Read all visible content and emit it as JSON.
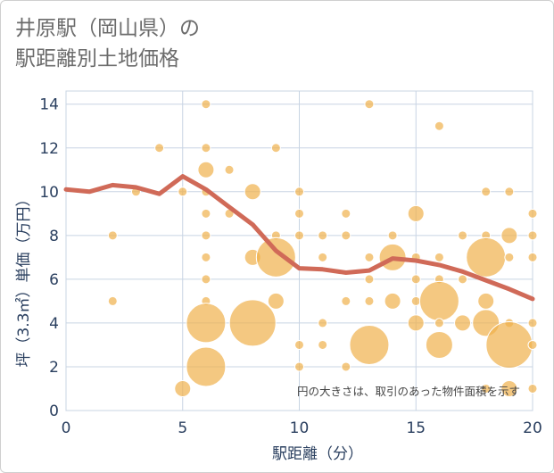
{
  "title_lines": [
    "井原駅（岡山県）の",
    "駅距離別土地価格"
  ],
  "colors": {
    "bubble": "#f0b04c",
    "line": "#d06a58",
    "grid": "#c8d4e3",
    "axis_text": "#2a3f5f"
  },
  "chart_data": {
    "type": "scatter",
    "title": "井原駅（岡山県）の駅距離別土地価格",
    "xlabel": "駅距離（分）",
    "ylabel": "坪（3.3㎡）単価（万円）",
    "xlim": [
      0,
      20
    ],
    "ylim": [
      0,
      14.6
    ],
    "xticks": [
      0,
      5,
      10,
      15,
      20
    ],
    "yticks": [
      0,
      2,
      4,
      6,
      8,
      10,
      12,
      14
    ],
    "grid": true,
    "annotation": "円の大きさは、取引のあった物件面積を示す",
    "bubbles": [
      {
        "x": 2,
        "y": 8,
        "s": 1
      },
      {
        "x": 2,
        "y": 5,
        "s": 1
      },
      {
        "x": 3,
        "y": 10,
        "s": 1
      },
      {
        "x": 4,
        "y": 12,
        "s": 1
      },
      {
        "x": 5,
        "y": 10,
        "s": 1
      },
      {
        "x": 5,
        "y": 1,
        "s": 2
      },
      {
        "x": 6,
        "y": 14,
        "s": 1
      },
      {
        "x": 6,
        "y": 12,
        "s": 1
      },
      {
        "x": 6,
        "y": 11,
        "s": 2
      },
      {
        "x": 6,
        "y": 10,
        "s": 1
      },
      {
        "x": 6,
        "y": 9,
        "s": 1
      },
      {
        "x": 6,
        "y": 8,
        "s": 1
      },
      {
        "x": 6,
        "y": 7,
        "s": 1
      },
      {
        "x": 6,
        "y": 6,
        "s": 1
      },
      {
        "x": 6,
        "y": 5,
        "s": 1
      },
      {
        "x": 6,
        "y": 4,
        "s": 4
      },
      {
        "x": 6,
        "y": 2,
        "s": 4
      },
      {
        "x": 7,
        "y": 11,
        "s": 1
      },
      {
        "x": 7,
        "y": 9,
        "s": 1
      },
      {
        "x": 8,
        "y": 10,
        "s": 2
      },
      {
        "x": 8,
        "y": 7,
        "s": 2
      },
      {
        "x": 8,
        "y": 4,
        "s": 5
      },
      {
        "x": 9,
        "y": 12,
        "s": 1
      },
      {
        "x": 9,
        "y": 8,
        "s": 1
      },
      {
        "x": 9,
        "y": 7,
        "s": 4
      },
      {
        "x": 9,
        "y": 5,
        "s": 2
      },
      {
        "x": 10,
        "y": 10,
        "s": 1
      },
      {
        "x": 10,
        "y": 9,
        "s": 1
      },
      {
        "x": 10,
        "y": 8,
        "s": 1
      },
      {
        "x": 10,
        "y": 3,
        "s": 1
      },
      {
        "x": 10,
        "y": 2,
        "s": 1
      },
      {
        "x": 11,
        "y": 8,
        "s": 1
      },
      {
        "x": 11,
        "y": 7,
        "s": 1
      },
      {
        "x": 11,
        "y": 4,
        "s": 1
      },
      {
        "x": 11,
        "y": 3,
        "s": 1
      },
      {
        "x": 12,
        "y": 9,
        "s": 1
      },
      {
        "x": 12,
        "y": 8,
        "s": 1
      },
      {
        "x": 12,
        "y": 5,
        "s": 1
      },
      {
        "x": 12,
        "y": 2,
        "s": 1
      },
      {
        "x": 13,
        "y": 14,
        "s": 1
      },
      {
        "x": 13,
        "y": 7,
        "s": 1
      },
      {
        "x": 13,
        "y": 6,
        "s": 1
      },
      {
        "x": 13,
        "y": 5,
        "s": 1
      },
      {
        "x": 13,
        "y": 3,
        "s": 4
      },
      {
        "x": 14,
        "y": 8,
        "s": 1
      },
      {
        "x": 14,
        "y": 7,
        "s": 3
      },
      {
        "x": 14,
        "y": 5,
        "s": 2
      },
      {
        "x": 15,
        "y": 9,
        "s": 2
      },
      {
        "x": 15,
        "y": 7,
        "s": 1
      },
      {
        "x": 15,
        "y": 6,
        "s": 1
      },
      {
        "x": 15,
        "y": 5,
        "s": 1
      },
      {
        "x": 15,
        "y": 4,
        "s": 2
      },
      {
        "x": 16,
        "y": 13,
        "s": 1
      },
      {
        "x": 16,
        "y": 7,
        "s": 1
      },
      {
        "x": 16,
        "y": 6,
        "s": 1
      },
      {
        "x": 16,
        "y": 5,
        "s": 4
      },
      {
        "x": 16,
        "y": 4,
        "s": 1
      },
      {
        "x": 16,
        "y": 3,
        "s": 3
      },
      {
        "x": 17,
        "y": 8,
        "s": 1
      },
      {
        "x": 17,
        "y": 6,
        "s": 1
      },
      {
        "x": 17,
        "y": 4,
        "s": 2
      },
      {
        "x": 18,
        "y": 10,
        "s": 1
      },
      {
        "x": 18,
        "y": 8,
        "s": 1
      },
      {
        "x": 18,
        "y": 7,
        "s": 4
      },
      {
        "x": 18,
        "y": 5,
        "s": 2
      },
      {
        "x": 18,
        "y": 4,
        "s": 3
      },
      {
        "x": 18,
        "y": 1,
        "s": 1
      },
      {
        "x": 19,
        "y": 10,
        "s": 1
      },
      {
        "x": 19,
        "y": 8,
        "s": 2
      },
      {
        "x": 19,
        "y": 7,
        "s": 1
      },
      {
        "x": 19,
        "y": 4,
        "s": 1
      },
      {
        "x": 19,
        "y": 3,
        "s": 5
      },
      {
        "x": 19,
        "y": 1,
        "s": 2
      },
      {
        "x": 20,
        "y": 9,
        "s": 1
      },
      {
        "x": 20,
        "y": 8,
        "s": 1
      },
      {
        "x": 20,
        "y": 7,
        "s": 1
      },
      {
        "x": 20,
        "y": 4,
        "s": 1
      },
      {
        "x": 20,
        "y": 3,
        "s": 1
      },
      {
        "x": 20,
        "y": 1,
        "s": 1
      }
    ],
    "trend": {
      "x": [
        0,
        1,
        2,
        3,
        4,
        5,
        6,
        7,
        8,
        9,
        10,
        11,
        12,
        13,
        14,
        15,
        16,
        17,
        18,
        19,
        20
      ],
      "y": [
        10.1,
        10.0,
        10.3,
        10.2,
        9.9,
        10.7,
        10.1,
        9.3,
        8.5,
        7.3,
        6.5,
        6.45,
        6.3,
        6.4,
        6.95,
        6.85,
        6.65,
        6.35,
        5.95,
        5.55,
        5.1
      ]
    }
  }
}
